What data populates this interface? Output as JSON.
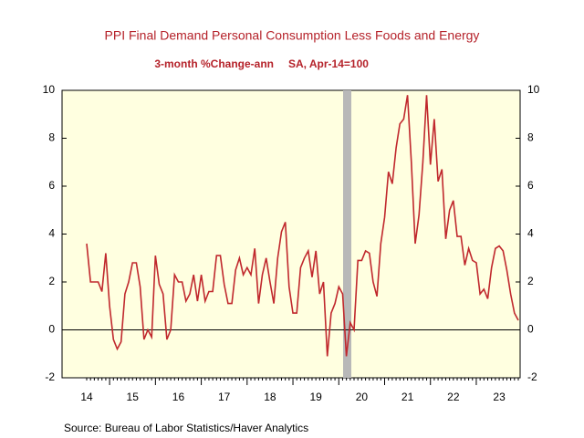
{
  "chart_data": {
    "type": "line",
    "title": "PPI Final Demand Personal Consumption Less Foods and Energy",
    "subtitle": "3-month %Change-ann",
    "subtitle_right": "SA, Apr-14=100",
    "source": "Source:  Bureau of Labor Statistics/Haver Analytics",
    "categories": [
      "14",
      null,
      null,
      null,
      null,
      null,
      null,
      null,
      null,
      null,
      null,
      null,
      "15",
      null,
      null,
      null,
      null,
      null,
      null,
      null,
      null,
      null,
      null,
      null,
      "16",
      null,
      null,
      null,
      null,
      null,
      null,
      null,
      null,
      null,
      null,
      null,
      "17",
      null,
      null,
      null,
      null,
      null,
      null,
      null,
      null,
      null,
      null,
      null,
      "18",
      null,
      null,
      null,
      null,
      null,
      null,
      null,
      null,
      null,
      null,
      null,
      "19",
      null,
      null,
      null,
      null,
      null,
      null,
      null,
      null,
      null,
      null,
      null,
      "20",
      null,
      null,
      null,
      null,
      null,
      null,
      null,
      null,
      null,
      null,
      null,
      "21",
      null,
      null,
      null,
      null,
      null,
      null,
      null,
      null,
      null,
      null,
      null,
      "22",
      null,
      null,
      null,
      null,
      null,
      null,
      null,
      null,
      null,
      null,
      null,
      "23",
      null,
      null,
      null,
      null,
      null
    ],
    "series": [
      {
        "name": "PPI Final Demand Personal Consumption Less Foods and Energy",
        "color": "#c0282d",
        "values": [
          3.6,
          2.0,
          2.0,
          2.0,
          1.6,
          3.2,
          1.0,
          -0.4,
          -0.8,
          -0.5,
          1.5,
          2.0,
          2.8,
          2.8,
          1.8,
          -0.4,
          0.0,
          -0.3,
          3.1,
          1.9,
          1.5,
          -0.4,
          0.0,
          2.3,
          2.0,
          2.0,
          1.2,
          1.5,
          2.3,
          1.2,
          2.3,
          1.2,
          1.6,
          1.6,
          3.1,
          3.1,
          1.9,
          1.1,
          1.1,
          2.5,
          3.0,
          2.3,
          2.6,
          2.3,
          3.4,
          1.1,
          2.3,
          3.0,
          2.0,
          1.1,
          3.0,
          4.1,
          4.5,
          1.8,
          0.7,
          0.7,
          2.6,
          3.0,
          3.3,
          2.2,
          3.3,
          1.5,
          2.0,
          -1.1,
          0.7,
          1.1,
          1.8,
          1.5,
          -1.1,
          0.3,
          0.0,
          2.9,
          2.9,
          3.3,
          3.2,
          2.0,
          1.4,
          3.6,
          4.7,
          6.6,
          6.1,
          7.6,
          8.6,
          8.8,
          9.8,
          7.0,
          3.6,
          4.8,
          7.0,
          9.8,
          6.9,
          8.8,
          6.2,
          6.7,
          3.8,
          5.0,
          5.4,
          3.9,
          3.9,
          2.7,
          3.4,
          2.9,
          2.8,
          1.5,
          1.7,
          1.3,
          2.6,
          3.4,
          3.5,
          3.3,
          2.5,
          1.5,
          0.7,
          0.4
        ]
      }
    ],
    "ylim": [
      -2,
      10
    ],
    "yticks": [
      -2,
      0,
      2,
      4,
      6,
      8,
      10
    ],
    "y2lim": [
      -2,
      10
    ],
    "y2ticks": [
      -2,
      0,
      2,
      4,
      6,
      8,
      10
    ]
  }
}
